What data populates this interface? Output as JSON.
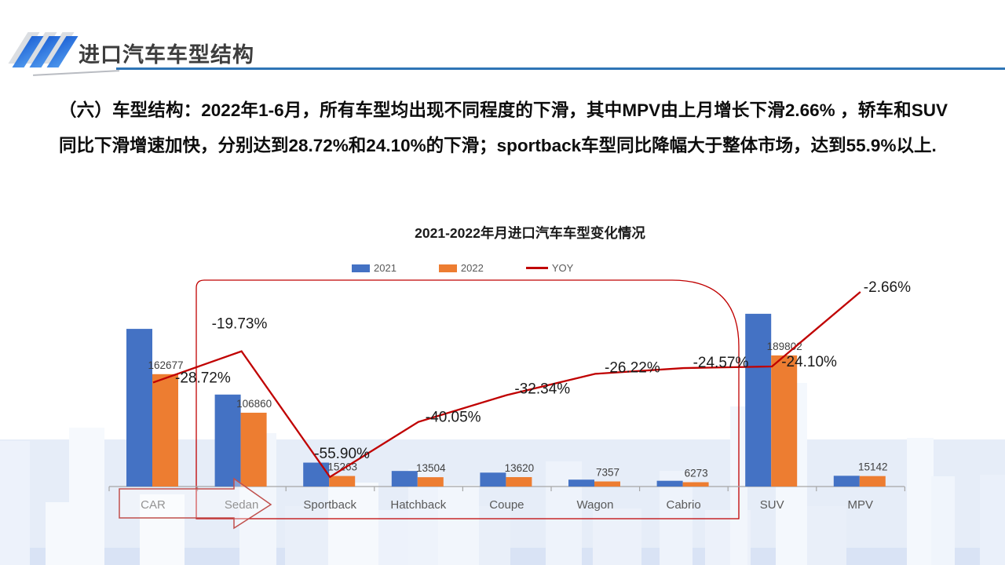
{
  "header": {
    "title": "进口汽车车型结构"
  },
  "body_text": "（六）车型结构：2022年1-6月，所有车型均出现不同程度的下滑，其中MPV由上月增长下滑2.66%  ，轿车和SUV同比下滑增速加快，分别达到28.72%和24.10%的下滑；sportback车型同比降幅大于整体市场，达到55.9%以上.",
  "chart_data": {
    "type": "bar",
    "subtype": "grouped-bars-with-yoy-line",
    "title": "2021-2022年月进口汽车车型变化情况",
    "categories": [
      "CAR",
      "Sedan",
      "Sportback",
      "Hatchback",
      "Coupe",
      "Wagon",
      "Cabrio",
      "SUV",
      "MPV"
    ],
    "series": [
      {
        "name": "2021",
        "color": "#4472C4",
        "estimated": true,
        "values": [
          228230,
          133130,
          34610,
          22530,
          20130,
          9970,
          8320,
          250070,
          15560
        ]
      },
      {
        "name": "2022",
        "color": "#ED7D31",
        "values": [
          162677,
          106860,
          15263,
          13504,
          13620,
          7357,
          6273,
          189802,
          15142
        ],
        "labels_shown": [
          "162677",
          "106860",
          "15263",
          "13504",
          "13620",
          "7357",
          "6273",
          "189802",
          "15142"
        ]
      }
    ],
    "line_series": {
      "name": "YOY",
      "color": "#C00000",
      "values_pct": [
        -28.72,
        -19.73,
        -55.9,
        -40.05,
        -32.34,
        -26.22,
        -24.57,
        -24.1,
        -2.66
      ],
      "labels_shown": [
        "-28.72%",
        "-19.73%",
        "-55.90%",
        "-40.05%",
        "-32.34%",
        "-26.22%",
        "-24.57%",
        "-24.10%",
        "-2.66%"
      ]
    },
    "legend": [
      "2021",
      "2022",
      "YOY"
    ],
    "legend_position": "top",
    "grid": false,
    "annotations": [
      {
        "shape": "rounded-red-box",
        "covers": "Sedan through Cabrio columns"
      },
      {
        "shape": "red-outline-right-arrow",
        "covers": "CAR axis label"
      }
    ]
  },
  "colors": {
    "bar_2021": "#4472C4",
    "bar_2022": "#ED7D31",
    "yoy_line": "#C00000",
    "annotation_red": "#C00000",
    "arrow_red": "#C0504D",
    "header_rule_blue": "#2E75B6",
    "axis_gray": "#A6A6A6",
    "sky_light": "#E6EDF8",
    "sky_strip": "#D9E3F5"
  }
}
